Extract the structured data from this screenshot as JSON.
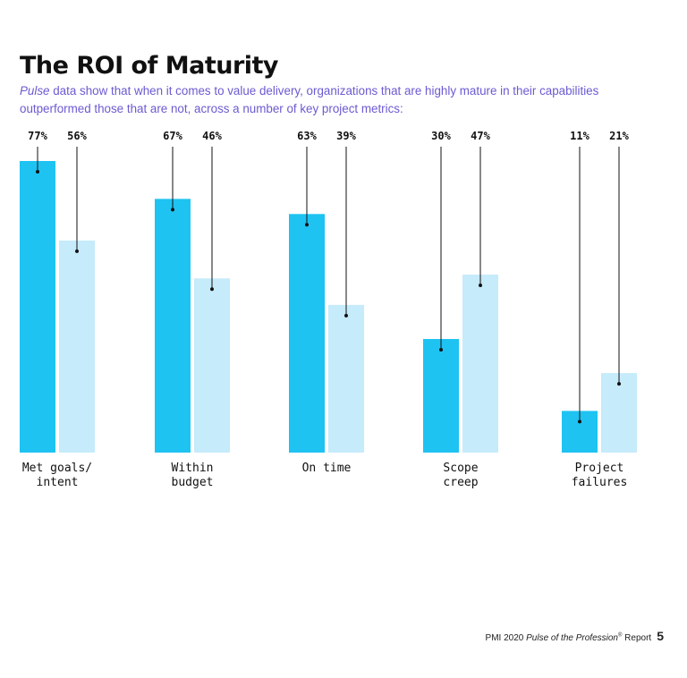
{
  "header": {
    "title": "The ROI of Maturity",
    "subtitle_em": "Pulse",
    "subtitle_rest": " data show that when it comes to value delivery, organizations that are highly mature in their capabilities outperformed those that are not, across a number of key project metrics:"
  },
  "footer": {
    "prefix": "PMI 2020 ",
    "report_em": "Pulse of the Profession",
    "reg_mark": "®",
    "suffix": " Report",
    "page_number": "5"
  },
  "colors": {
    "high_maturity": "#1ec3f2",
    "low_maturity": "#c6ebfb"
  },
  "chart_data": {
    "type": "bar",
    "categories": [
      [
        "Met goals/",
        "intent"
      ],
      [
        "Within",
        "budget"
      ],
      [
        "On time"
      ],
      [
        "Scope",
        "creep"
      ],
      [
        "Project",
        "failures"
      ]
    ],
    "series": [
      {
        "values": [
          77,
          67,
          63,
          30,
          11
        ]
      },
      {
        "values": [
          56,
          46,
          39,
          47,
          21
        ]
      }
    ],
    "value_labels": [
      [
        "77%",
        "67%",
        "63%",
        "30%",
        "11%"
      ],
      [
        "56%",
        "46%",
        "39%",
        "47%",
        "21%"
      ]
    ],
    "unit": "%",
    "ylim": [
      0,
      77
    ],
    "grid": false
  }
}
